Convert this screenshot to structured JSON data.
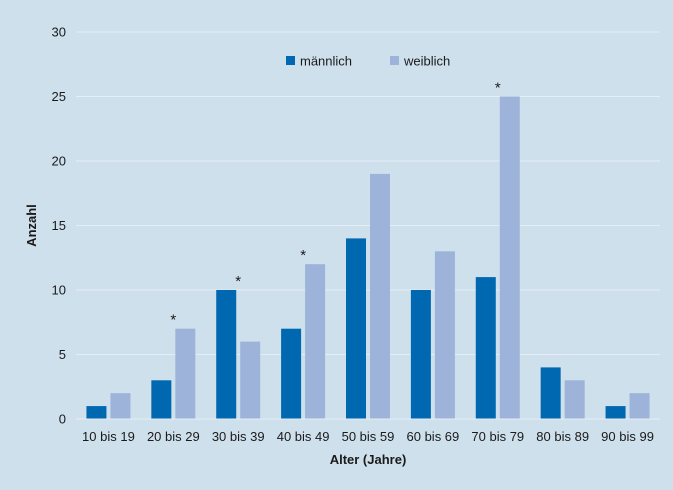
{
  "chart_data": {
    "type": "bar",
    "categories": [
      "10 bis 19",
      "20 bis 29",
      "30 bis 39",
      "40 bis 49",
      "50 bis 59",
      "60 bis 69",
      "70 bis 79",
      "80 bis 89",
      "90 bis 99"
    ],
    "series": [
      {
        "name": "männlich",
        "color": "#0067b1",
        "values": [
          1,
          3,
          10,
          7,
          14,
          10,
          11,
          4,
          1
        ]
      },
      {
        "name": "weiblich",
        "color": "#9db3d9",
        "values": [
          2,
          7,
          6,
          12,
          19,
          13,
          25,
          3,
          2
        ]
      }
    ],
    "significance_marker": "*",
    "significant_categories": [
      "20 bis 29",
      "30 bis 39",
      "40 bis 49",
      "70 bis 79"
    ],
    "xlabel": "Alter (Jahre)",
    "ylabel": "Anzahl",
    "ylim": [
      0,
      30
    ],
    "yticks": [
      0,
      5,
      10,
      15,
      20,
      25,
      30
    ],
    "grid": true,
    "legend_position": "top-center",
    "gridline_color": "#e4eef6",
    "background_color": "#cfe0ed"
  }
}
